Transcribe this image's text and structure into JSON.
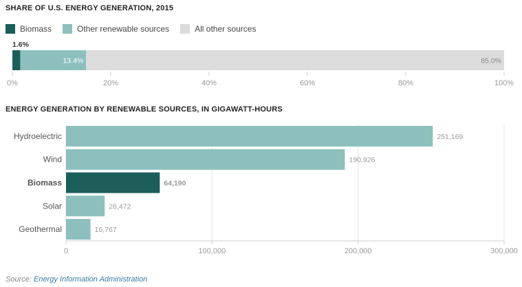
{
  "colors": {
    "biomass": "#1b5e5a",
    "renewable": "#8dc0bd",
    "other": "#dcdcdc",
    "grid": "#e6e6e6"
  },
  "chart_data": [
    {
      "type": "bar",
      "orientation": "horizontal-stacked",
      "title": "SHARE OF U.S. ENERGY GENERATION, 2015",
      "series": [
        {
          "name": "Biomass",
          "value": 1.6,
          "label": "1.6%"
        },
        {
          "name": "Other renewable sources",
          "value": 13.4,
          "label": "13.4%"
        },
        {
          "name": "All other sources",
          "value": 85.0,
          "label": "85.0%"
        }
      ],
      "xlim": [
        0,
        100
      ],
      "ticks": [
        0,
        20,
        40,
        60,
        80,
        100
      ],
      "tick_labels": [
        "0%",
        "20%",
        "40%",
        "60%",
        "80%",
        "100%"
      ],
      "legend": "top-left"
    },
    {
      "type": "bar",
      "orientation": "horizontal",
      "title": "ENERGY GENERATION BY RENEWABLE SOURCES, IN GIGAWATT-HOURS",
      "categories": [
        "Hydroelectric",
        "Wind",
        "Biomass",
        "Solar",
        "Geothermal"
      ],
      "values": [
        251169,
        190926,
        64190,
        26472,
        16767
      ],
      "value_labels": [
        "251,169",
        "190,926",
        "64,190",
        "26,472",
        "16,767"
      ],
      "highlight": "Biomass",
      "xlim": [
        0,
        300000
      ],
      "ticks": [
        0,
        100000,
        200000,
        300000
      ],
      "tick_labels": [
        "0",
        "100,000",
        "200,000",
        "300,000"
      ]
    }
  ],
  "source": {
    "prefix": "Source:",
    "link": "Energy Information Administration"
  }
}
